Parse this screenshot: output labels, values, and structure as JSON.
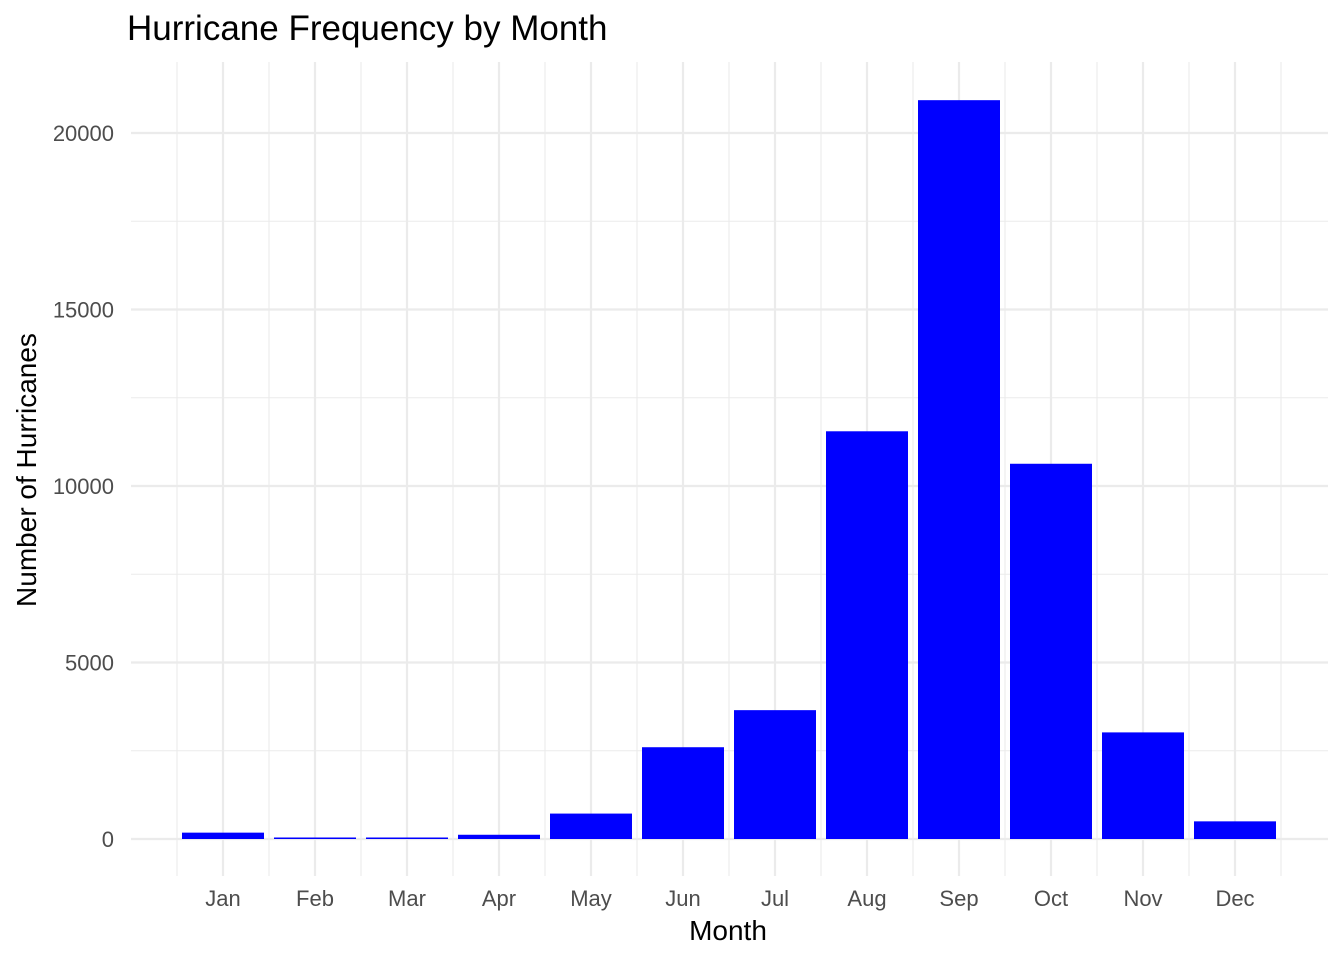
{
  "chart_data": {
    "type": "bar",
    "title": "Hurricane Frequency by Month",
    "xlabel": "Month",
    "ylabel": "Number of Hurricanes",
    "categories": [
      "Jan",
      "Feb",
      "Mar",
      "Apr",
      "May",
      "Jun",
      "Jul",
      "Aug",
      "Sep",
      "Oct",
      "Nov",
      "Dec"
    ],
    "values": [
      180,
      30,
      25,
      120,
      720,
      2600,
      3650,
      11550,
      20930,
      10630,
      3020,
      500
    ],
    "yticks": [
      0,
      5000,
      10000,
      15000,
      20000
    ],
    "ylim": [
      -1000,
      22000
    ],
    "bar_color": "#0000ff",
    "grid": true,
    "theme": "minimal"
  }
}
